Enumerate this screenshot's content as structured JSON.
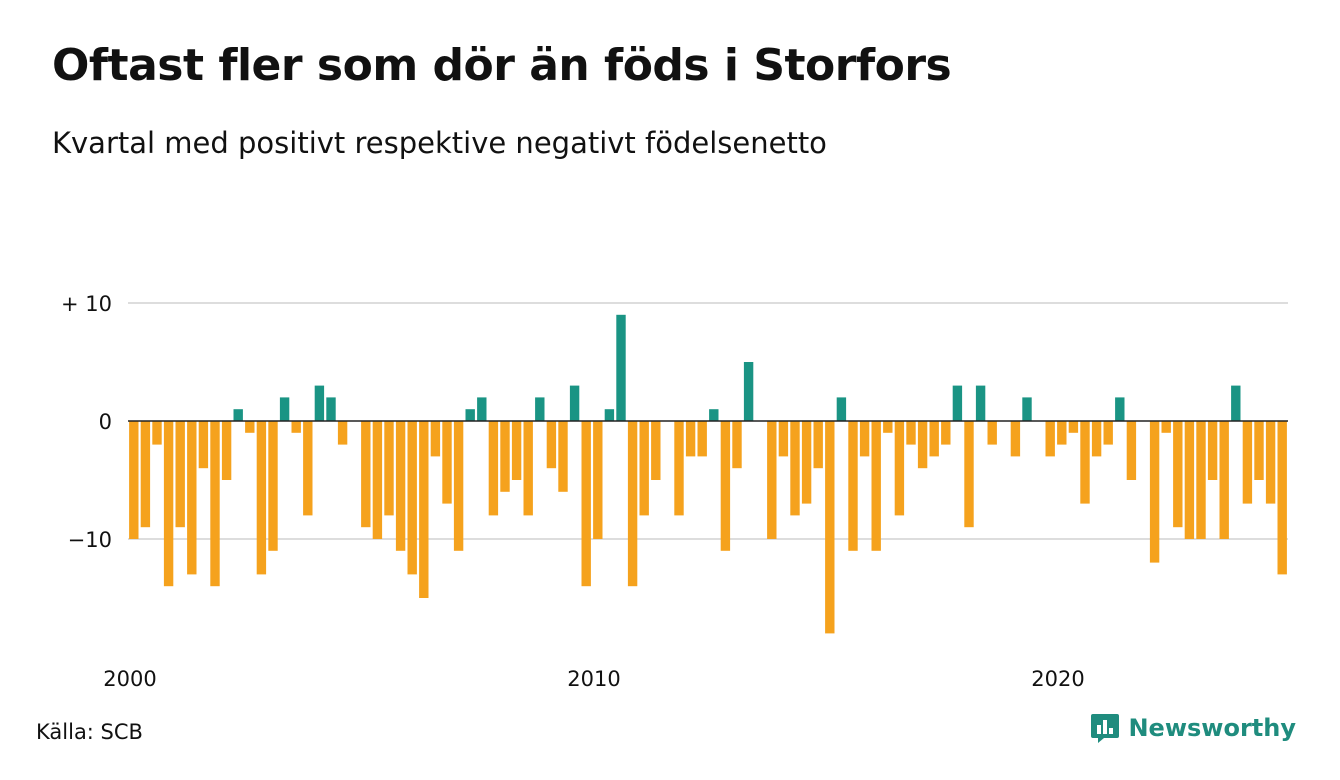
{
  "title": "Oftast fler som dör än föds i Storfors",
  "subtitle": "Kvartal med positivt respektive negativt födelsenetto",
  "source": "Källa: SCB",
  "brand": "Newsworthy",
  "colors": {
    "positive": "#1a9484",
    "negative": "#f5a21d",
    "grid": "#dddddd",
    "brand": "#1f8c7e"
  },
  "chart_data": {
    "type": "bar",
    "x_start": 2000,
    "quarters_per_year": 4,
    "values": [
      -10,
      -9,
      -2,
      -14,
      -9,
      -13,
      -4,
      -14,
      -5,
      1,
      -1,
      -13,
      -11,
      2,
      -1,
      -8,
      3,
      2,
      -2,
      0,
      -9,
      -10,
      -8,
      -11,
      -13,
      -15,
      -3,
      -7,
      -11,
      1,
      2,
      -8,
      -6,
      -5,
      -8,
      2,
      -4,
      -6,
      3,
      -14,
      -10,
      1,
      9,
      -14,
      -8,
      -5,
      0,
      -8,
      -3,
      -3,
      1,
      -11,
      -4,
      5,
      0,
      -10,
      -3,
      -8,
      -7,
      -4,
      -18,
      2,
      -11,
      -3,
      -11,
      -1,
      -8,
      -2,
      -4,
      -3,
      -2,
      3,
      -9,
      3,
      -2,
      0,
      -3,
      2,
      0,
      -3,
      -2,
      -1,
      -7,
      -3,
      -2,
      2,
      -5,
      0,
      -12,
      -1,
      -9,
      -10,
      -10,
      -5,
      -10,
      3,
      -7,
      -5,
      -7,
      -13
    ],
    "y_ticks": [
      {
        "value": 10,
        "label": "+ 10"
      },
      {
        "value": 0,
        "label": "0"
      },
      {
        "value": -10,
        "label": "−10"
      }
    ],
    "x_ticks": [
      {
        "value": 2000,
        "label": "2000"
      },
      {
        "value": 2010,
        "label": "2010"
      },
      {
        "value": 2020,
        "label": "2020"
      }
    ],
    "ylim": [
      -19,
      11
    ],
    "grid": true
  }
}
